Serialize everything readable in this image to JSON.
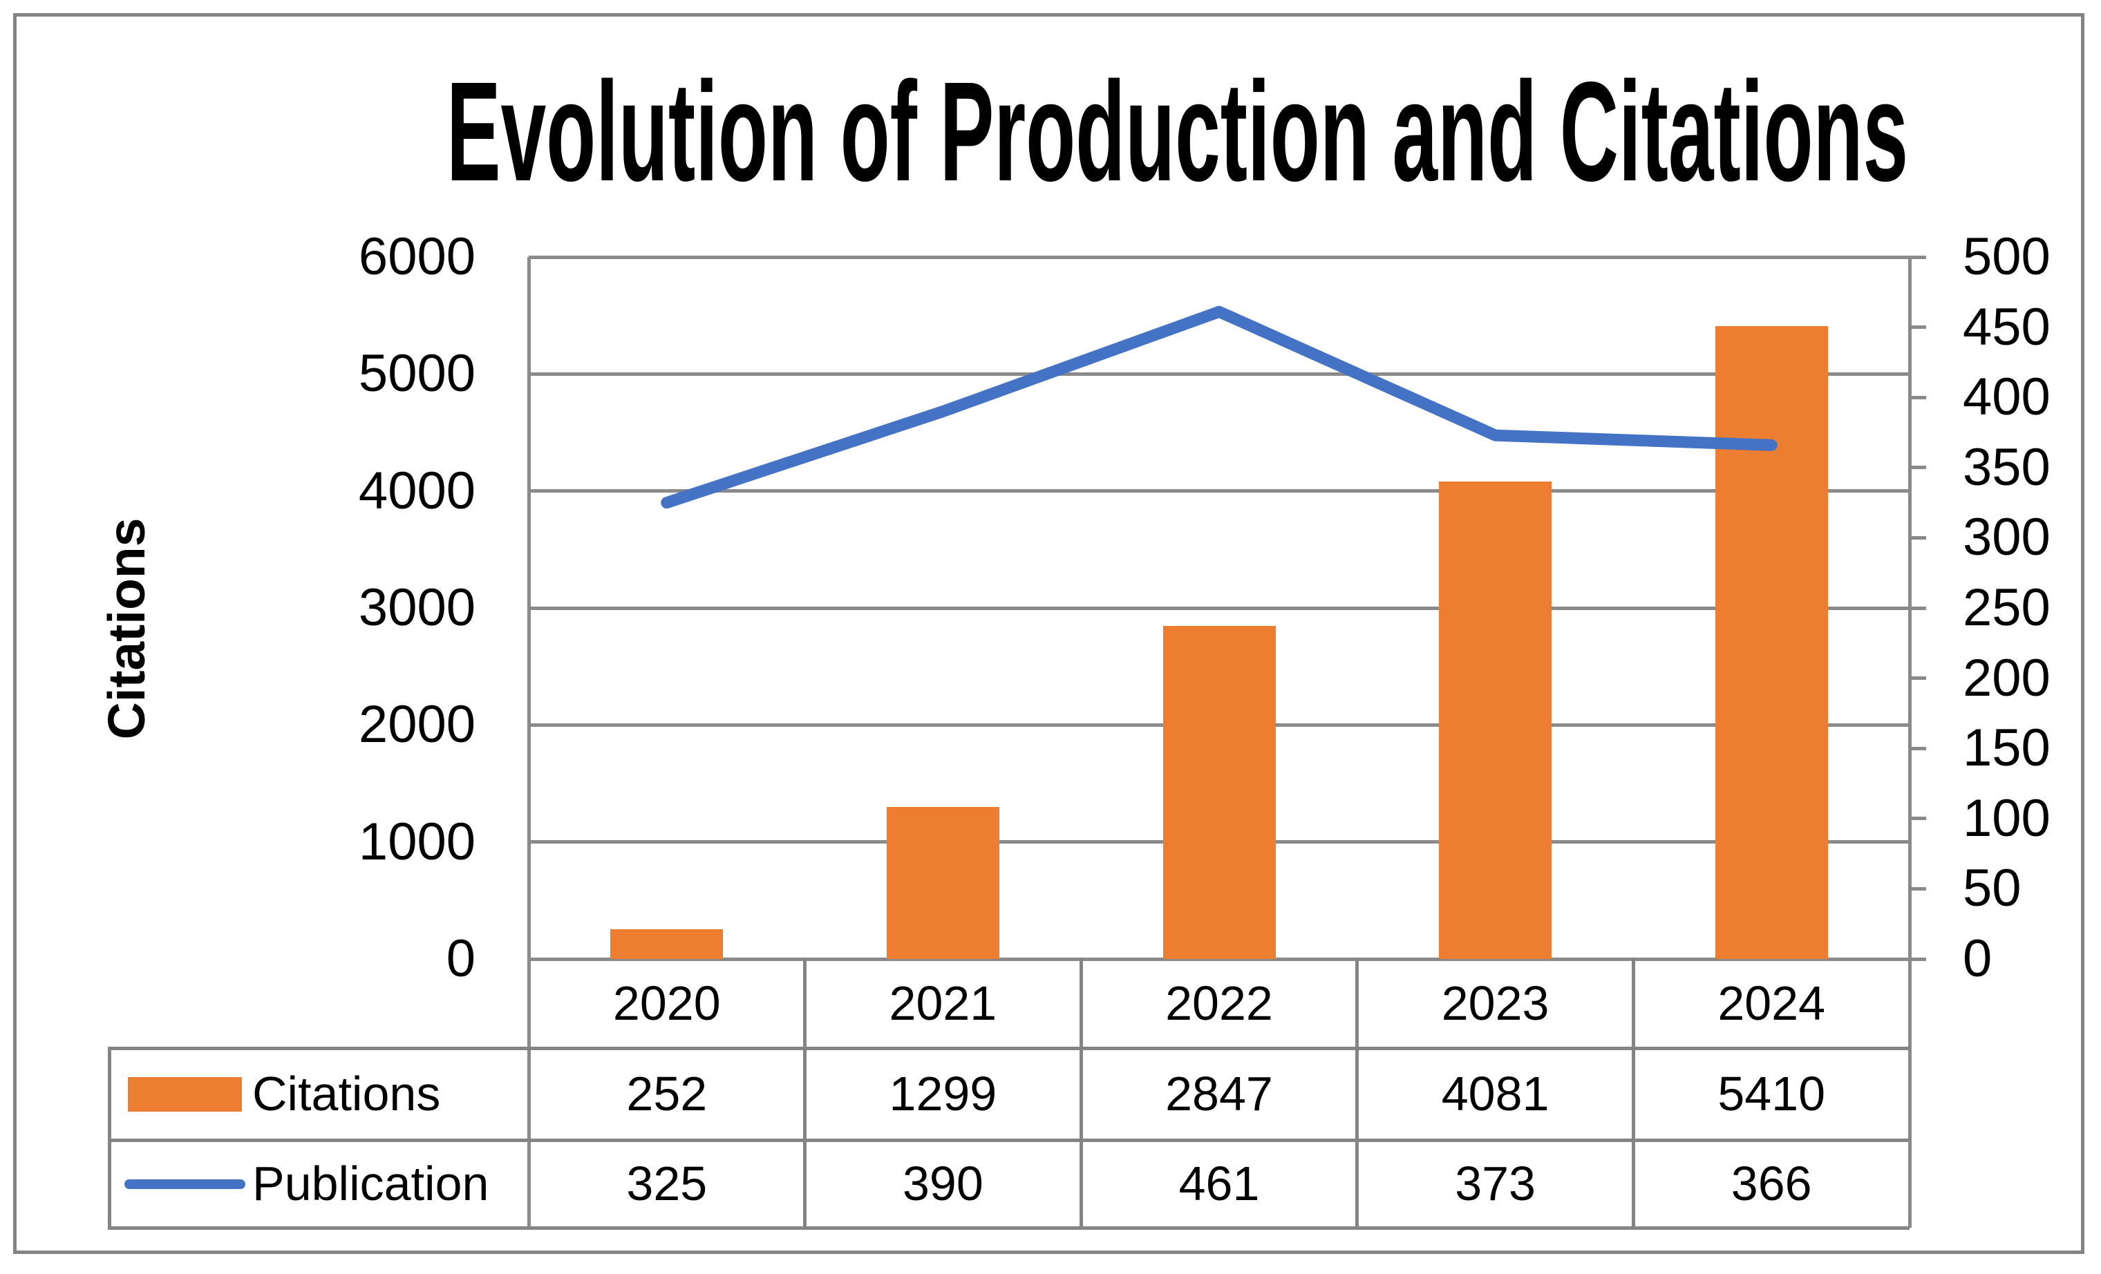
{
  "chart_data": {
    "type": "bar",
    "title": "Evolution of Production and Citations",
    "categories": [
      "2020",
      "2021",
      "2022",
      "2023",
      "2024"
    ],
    "series": [
      {
        "name": "Citations",
        "type": "bar",
        "axis": "left",
        "color": "#ED7D31",
        "values": [
          252,
          1299,
          2847,
          4081,
          5410
        ]
      },
      {
        "name": "Publication",
        "type": "line",
        "axis": "right",
        "color": "#4472C4",
        "values": [
          325,
          390,
          461,
          373,
          366
        ]
      }
    ],
    "left_axis": {
      "label": "Citations",
      "min": 0,
      "max": 6000,
      "step": 1000,
      "ticks": [
        6000,
        5000,
        4000,
        3000,
        2000,
        1000,
        0
      ]
    },
    "right_axis": {
      "label": "",
      "min": 0,
      "max": 500,
      "step": 50,
      "ticks": [
        500,
        450,
        400,
        350,
        300,
        250,
        200,
        150,
        100,
        50,
        0
      ]
    },
    "grid": true,
    "legend_position": "data-table-left-column",
    "data_table_shown": true
  },
  "colors": {
    "bar": "#ED7D31",
    "line": "#4472C4",
    "grid": "#8a8a8a",
    "table_border": "#848484",
    "text": "#000000"
  }
}
